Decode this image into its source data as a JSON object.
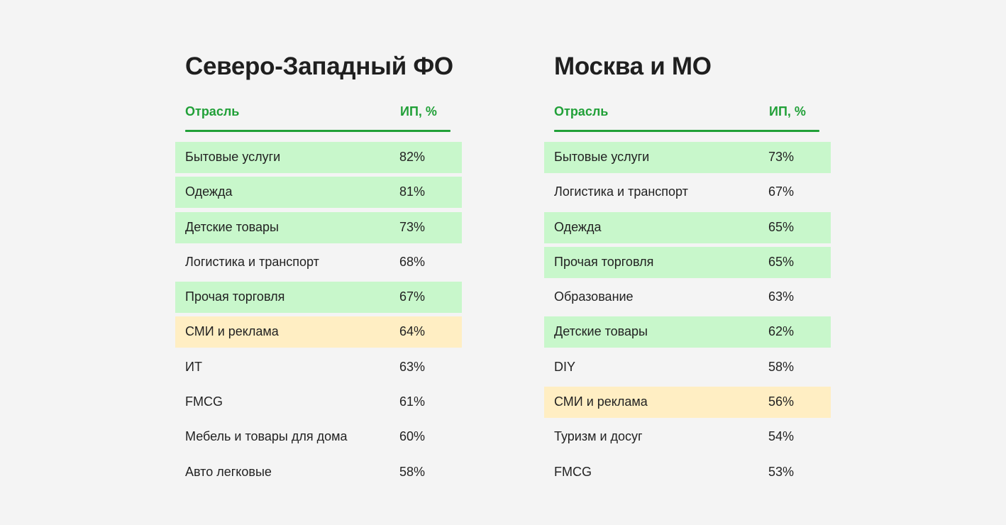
{
  "colors": {
    "accent": "#21a038",
    "highlight_green": "#c8f7cb",
    "highlight_yellow": "#ffeec3",
    "background": "#f4f4f4"
  },
  "panels": [
    {
      "title": "Северо-Западный ФО",
      "col_name": "Отрасль",
      "col_value": "ИП, %",
      "rows": [
        {
          "name": "Бытовые услуги",
          "value": "82%",
          "highlight": "green"
        },
        {
          "name": "Одежда",
          "value": "81%",
          "highlight": "green"
        },
        {
          "name": "Детские товары",
          "value": "73%",
          "highlight": "green"
        },
        {
          "name": "Логистика и транспорт",
          "value": "68%",
          "highlight": "none"
        },
        {
          "name": "Прочая торговля",
          "value": "67%",
          "highlight": "green"
        },
        {
          "name": "СМИ и реклама",
          "value": "64%",
          "highlight": "yellow"
        },
        {
          "name": "ИТ",
          "value": "63%",
          "highlight": "none"
        },
        {
          "name": "FMCG",
          "value": "61%",
          "highlight": "none"
        },
        {
          "name": "Мебель и товары для дома",
          "value": "60%",
          "highlight": "none"
        },
        {
          "name": "Авто легковые",
          "value": "58%",
          "highlight": "none"
        }
      ]
    },
    {
      "title": "Москва и МО",
      "col_name": "Отрасль",
      "col_value": "ИП, %",
      "rows": [
        {
          "name": "Бытовые услуги",
          "value": "73%",
          "highlight": "green"
        },
        {
          "name": "Логистика и транспорт",
          "value": "67%",
          "highlight": "none"
        },
        {
          "name": "Одежда",
          "value": "65%",
          "highlight": "green"
        },
        {
          "name": "Прочая торговля",
          "value": "65%",
          "highlight": "green"
        },
        {
          "name": "Образование",
          "value": "63%",
          "highlight": "none"
        },
        {
          "name": "Детские товары",
          "value": "62%",
          "highlight": "green"
        },
        {
          "name": "DIY",
          "value": "58%",
          "highlight": "none"
        },
        {
          "name": "СМИ и реклама",
          "value": "56%",
          "highlight": "yellow"
        },
        {
          "name": "Туризм и досуг",
          "value": "54%",
          "highlight": "none"
        },
        {
          "name": "FMCG",
          "value": "53%",
          "highlight": "none"
        }
      ]
    }
  ]
}
